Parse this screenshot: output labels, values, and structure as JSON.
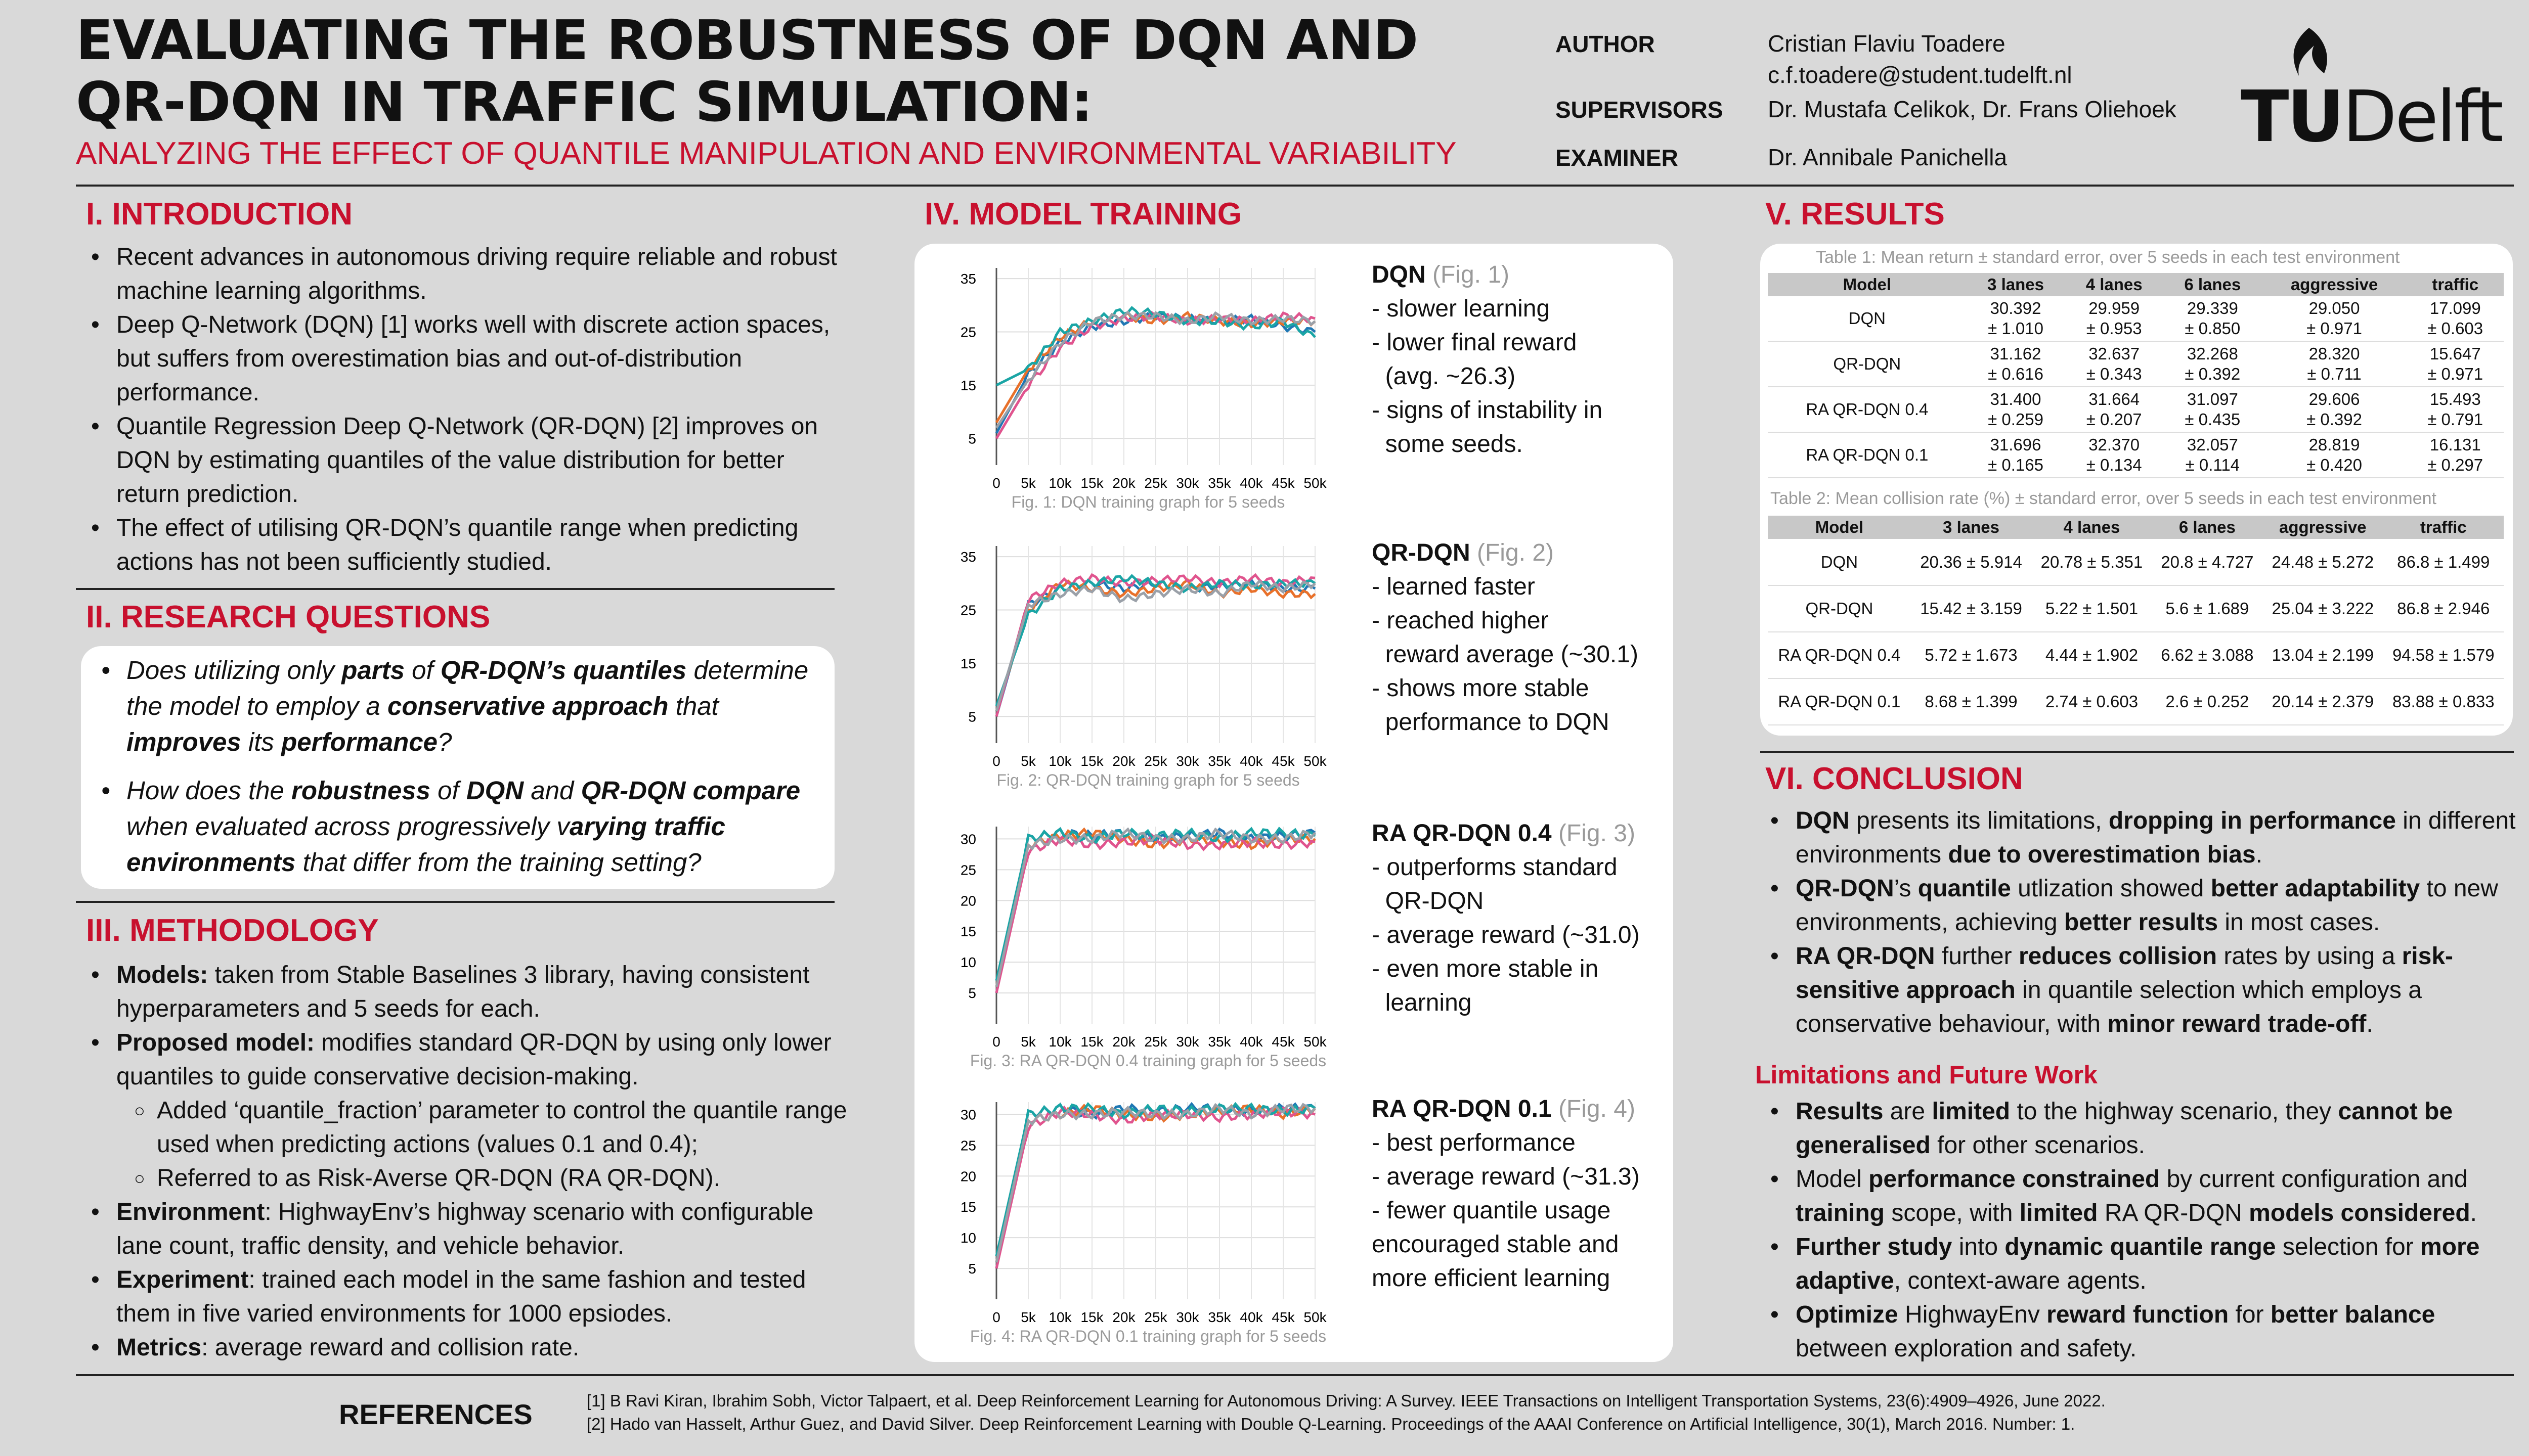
{
  "header": {
    "title_line1": "EVALUATING THE ROBUSTNESS OF DQN AND",
    "title_line2": "QR-DQN IN TRAFFIC SIMULATION:",
    "subtitle": "ANALYZING THE EFFECT OF QUANTILE MANIPULATION AND ENVIRONMENTAL VARIABILITY",
    "author_label": "AUTHOR",
    "author_name": "Cristian Flaviu Toadere",
    "author_email": "c.f.toadere@student.tudelft.nl",
    "supervisors_label": "SUPERVISORS",
    "supervisors": "Dr. Mustafa Celikok,  Dr. Frans Oliehoek",
    "examiner_label": "EXAMINER",
    "examiner": "Dr. Annibale Panichella",
    "logo_tu": "TU",
    "logo_delft": "Delft"
  },
  "intro": {
    "title": "I. INTRODUCTION",
    "bullets": [
      "Recent advances in autonomous driving require reliable and robust machine learning algorithms.",
      "Deep Q-Network (DQN) [1] works well with discrete action spaces, but suffers from overestimation bias and out-of-distribution performance.",
      "Quantile Regression Deep Q-Network (QR-DQN) [2] improves on DQN by estimating quantiles of the value distribution for better return prediction.",
      "The effect of utilising QR-DQN’s quantile range when predicting actions has not been sufficiently studied."
    ]
  },
  "rq": {
    "title": "II. RESEARCH QUESTIONS",
    "q1": [
      "Does utilizing only ",
      "parts",
      " of ",
      "QR-DQN’s quantiles",
      " determine the model to employ a ",
      "conservative approach",
      " that ",
      "improves",
      " its ",
      "performance",
      "?"
    ],
    "q2": [
      "How does the ",
      "robustness",
      " of ",
      "DQN",
      " and ",
      "QR-DQN compare",
      " when evaluated across progressively v",
      "arying traffic environments",
      " that differ from the training setting?"
    ]
  },
  "method": {
    "title": "III. METHODOLOGY",
    "models_b": "Models:",
    "models_t": " taken from Stable Baselines 3 library, having consistent hyperparameters and 5 seeds for each.",
    "proposed_b": "Proposed model:",
    "proposed_t": " modifies standard QR-DQN by using only lower quantiles to guide conservative decision-making.",
    "sub1": "Added ‘quantile_fraction’ parameter to control the quantile range used when predicting actions (values 0.1 and 0.4);",
    "sub2": "Referred to as Risk-Averse QR-DQN (RA QR-DQN).",
    "env_b": "Environment",
    "env_t": ": HighwayEnv’s highway scenario with configurable lane count, traffic density, and vehicle behavior.",
    "exp_b": "Experiment",
    "exp_t": ": trained each model in the same fashion and tested them in five varied environments for 1000 epsiodes.",
    "met_b": "Metrics",
    "met_t": ": average reward and collision rate."
  },
  "training": {
    "title": "IV. MODEL TRAINING",
    "charts": [
      {
        "name": "DQN",
        "fig": "(Fig. 1)",
        "caption": "Fig. 1: DQN training graph for 5 seeds",
        "lines": [
          "- slower learning",
          "- lower final reward",
          "  (avg. ~26.3)",
          "- signs of instability in",
          "  some seeds."
        ]
      },
      {
        "name": "QR-DQN",
        "fig": "(Fig. 2)",
        "caption": "Fig. 2: QR-DQN training graph for 5 seeds",
        "lines": [
          "- learned faster",
          "- reached higher",
          "  reward average (~30.1)",
          "- shows more stable",
          "  performance to DQN"
        ]
      },
      {
        "name": "RA QR-DQN 0.4",
        "fig": "(Fig. 3)",
        "caption": "Fig. 3: RA QR-DQN 0.4 training graph for 5 seeds",
        "lines": [
          "- outperforms standard",
          "  QR-DQN",
          "- average reward (~31.0)",
          "- even more stable in",
          "  learning"
        ]
      },
      {
        "name": "RA QR-DQN 0.1",
        "fig": "(Fig. 4)",
        "caption": "Fig. 4: RA QR-DQN 0.1 training graph for 5 seeds",
        "lines": [
          "- best performance",
          "- average reward (~31.3)",
          "- fewer quantile usage",
          "encouraged stable and",
          "more efficient learning"
        ]
      }
    ]
  },
  "chart_data": [
    {
      "type": "line",
      "x": [
        "0",
        "5k",
        "10k",
        "15k",
        "20k",
        "25k",
        "30k",
        "35k",
        "40k",
        "45k",
        "50k"
      ],
      "yticks": [
        5,
        15,
        25,
        35
      ],
      "ylim": [
        0,
        37
      ],
      "series": [
        {
          "values": [
            6,
            17,
            23,
            26,
            27,
            28,
            27.5,
            27,
            27.5,
            26,
            25
          ]
        },
        {
          "values": [
            8,
            18,
            24,
            27,
            28,
            27,
            28,
            27,
            26.5,
            27,
            27
          ]
        },
        {
          "values": [
            5,
            15,
            22,
            26,
            27.5,
            28,
            27,
            27.5,
            27,
            28,
            27.5
          ]
        },
        {
          "values": [
            15,
            18,
            25,
            27,
            29,
            28.5,
            27,
            27,
            26,
            27,
            24
          ]
        },
        {
          "values": [
            7,
            16,
            23,
            27,
            28,
            28,
            27,
            28,
            27,
            27.5,
            27
          ]
        }
      ]
    },
    {
      "type": "line",
      "x": [
        "0",
        "5k",
        "10k",
        "15k",
        "20k",
        "25k",
        "30k",
        "35k",
        "40k",
        "45k",
        "50k"
      ],
      "yticks": [
        5,
        15,
        25,
        35
      ],
      "ylim": [
        0,
        37
      ],
      "series": [
        {
          "values": [
            5,
            26,
            29,
            30,
            29,
            30,
            29,
            29.5,
            30,
            29,
            29
          ]
        },
        {
          "values": [
            6,
            25,
            30,
            29,
            28,
            29,
            30,
            28,
            29,
            28,
            28
          ]
        },
        {
          "values": [
            5,
            27,
            30,
            31,
            30,
            30.5,
            31,
            30,
            31,
            30,
            31
          ]
        },
        {
          "values": [
            7,
            24,
            29,
            30,
            31,
            30,
            29,
            30,
            29.5,
            30,
            30
          ]
        },
        {
          "values": [
            6,
            26,
            28,
            29,
            27,
            28,
            29,
            28,
            30,
            29,
            30
          ]
        }
      ]
    },
    {
      "type": "line",
      "x": [
        "0",
        "5k",
        "10k",
        "15k",
        "20k",
        "25k",
        "30k",
        "35k",
        "40k",
        "45k",
        "50k"
      ],
      "yticks": [
        5,
        10,
        15,
        20,
        25,
        30
      ],
      "ylim": [
        0,
        32
      ],
      "series": [
        {
          "values": [
            5,
            30,
            31,
            30.5,
            31,
            30,
            30.5,
            31,
            30,
            30.5,
            31
          ]
        },
        {
          "values": [
            6,
            29,
            30.5,
            31,
            30,
            29,
            30,
            29.5,
            29,
            30,
            30
          ]
        },
        {
          "values": [
            5,
            28,
            30,
            29,
            29.5,
            30,
            29,
            29,
            29.5,
            29,
            29.5
          ]
        },
        {
          "values": [
            7,
            30,
            31,
            30,
            31,
            30.5,
            31,
            30,
            31,
            31,
            30.5
          ]
        },
        {
          "values": [
            6,
            29,
            30,
            30,
            31,
            30,
            30,
            31,
            30,
            30,
            31
          ]
        }
      ]
    },
    {
      "type": "line",
      "x": [
        "0",
        "5k",
        "10k",
        "15k",
        "20k",
        "25k",
        "30k",
        "35k",
        "40k",
        "45k",
        "50k"
      ],
      "yticks": [
        5,
        10,
        15,
        20,
        25,
        30
      ],
      "ylim": [
        0,
        32
      ],
      "series": [
        {
          "values": [
            5,
            30,
            31,
            30,
            31,
            30.5,
            31,
            31,
            30.5,
            31,
            31
          ]
        },
        {
          "values": [
            6,
            29,
            30,
            31,
            30,
            29.5,
            30,
            30.5,
            31,
            30,
            31
          ]
        },
        {
          "values": [
            5,
            28,
            30.5,
            30,
            29,
            30,
            30,
            29.5,
            30,
            30.5,
            30
          ]
        },
        {
          "values": [
            7,
            30,
            31,
            31,
            30,
            31,
            30.5,
            31,
            31,
            30.5,
            31
          ]
        },
        {
          "values": [
            6,
            29,
            30,
            30,
            30.5,
            30,
            30,
            31,
            30,
            31,
            31
          ]
        }
      ]
    }
  ],
  "results": {
    "title": "V. RESULTS",
    "t1_caption": "Table 1: Mean return ± standard error, over 5 seeds in each test environment",
    "t2_caption": "Table 2: Mean collision rate (%) ± standard error, over 5 seeds in each test environment",
    "headers": [
      "Model",
      "3 lanes",
      "4 lanes",
      "6 lanes",
      "aggressive",
      "traffic"
    ],
    "t1": [
      {
        "model": "DQN",
        "m": [
          "30.392",
          "29.959",
          "29.339",
          "29.050",
          "17.099"
        ],
        "s": [
          "± 1.010",
          "± 0.953",
          "± 0.850",
          "± 0.971",
          "± 0.603"
        ]
      },
      {
        "model": "QR-DQN",
        "m": [
          "31.162",
          "32.637",
          "32.268",
          "28.320",
          "15.647"
        ],
        "s": [
          "± 0.616",
          "± 0.343",
          "± 0.392",
          "± 0.711",
          "± 0.971"
        ]
      },
      {
        "model": "RA QR-DQN 0.4",
        "m": [
          "31.400",
          "31.664",
          "31.097",
          "29.606",
          "15.493"
        ],
        "s": [
          "± 0.259",
          "± 0.207",
          "± 0.435",
          "± 0.392",
          "± 0.791"
        ]
      },
      {
        "model": "RA QR-DQN 0.1",
        "m": [
          "31.696",
          "32.370",
          "32.057",
          "28.819",
          "16.131"
        ],
        "s": [
          "± 0.165",
          "± 0.134",
          "± 0.114",
          "± 0.420",
          "± 0.297"
        ]
      }
    ],
    "t2": [
      {
        "model": "DQN",
        "c": [
          "20.36 ± 5.914",
          "20.78 ± 5.351",
          "20.8 ± 4.727",
          "24.48 ± 5.272",
          "86.8 ± 1.499"
        ]
      },
      {
        "model": "QR-DQN",
        "c": [
          "15.42 ± 3.159",
          "5.22 ± 1.501",
          "5.6 ± 1.689",
          "25.04 ± 3.222",
          "86.8 ± 2.946"
        ]
      },
      {
        "model": "RA QR-DQN 0.4",
        "c": [
          "5.72 ± 1.673",
          "4.44 ± 1.902",
          "6.62 ± 3.088",
          "13.04 ± 2.199",
          "94.58 ± 1.579"
        ]
      },
      {
        "model": "RA QR-DQN 0.1",
        "c": [
          "8.68 ± 1.399",
          "2.74 ± 0.603",
          "2.6 ± 0.252",
          "20.14 ± 2.379",
          "83.88 ± 0.833"
        ]
      }
    ]
  },
  "conclusion": {
    "title": "VI. CONCLUSION",
    "lim_title": "Limitations and Future Work"
  },
  "references": {
    "label": "REFERENCES",
    "r1": "[1] B Ravi Kiran, Ibrahim Sobh, Victor Talpaert, et al. Deep Reinforcement Learning for Autonomous Driving: A Survey. IEEE Transactions on Intelligent Transportation Systems, 23(6):4909–4926, June 2022.",
    "r2": "[2] Hado van Hasselt, Arthur Guez, and David Silver. Deep Reinforcement Learning with Double Q-Learning. Proceedings of the AAAI Conference on Artificial Intelligence, 30(1), March 2016. Number: 1."
  },
  "colors": {
    "accent": "#c8102e",
    "series": [
      "#1f77b4",
      "#e8702a",
      "#e0548e",
      "#1aa5a5",
      "#9aa0a8"
    ]
  }
}
